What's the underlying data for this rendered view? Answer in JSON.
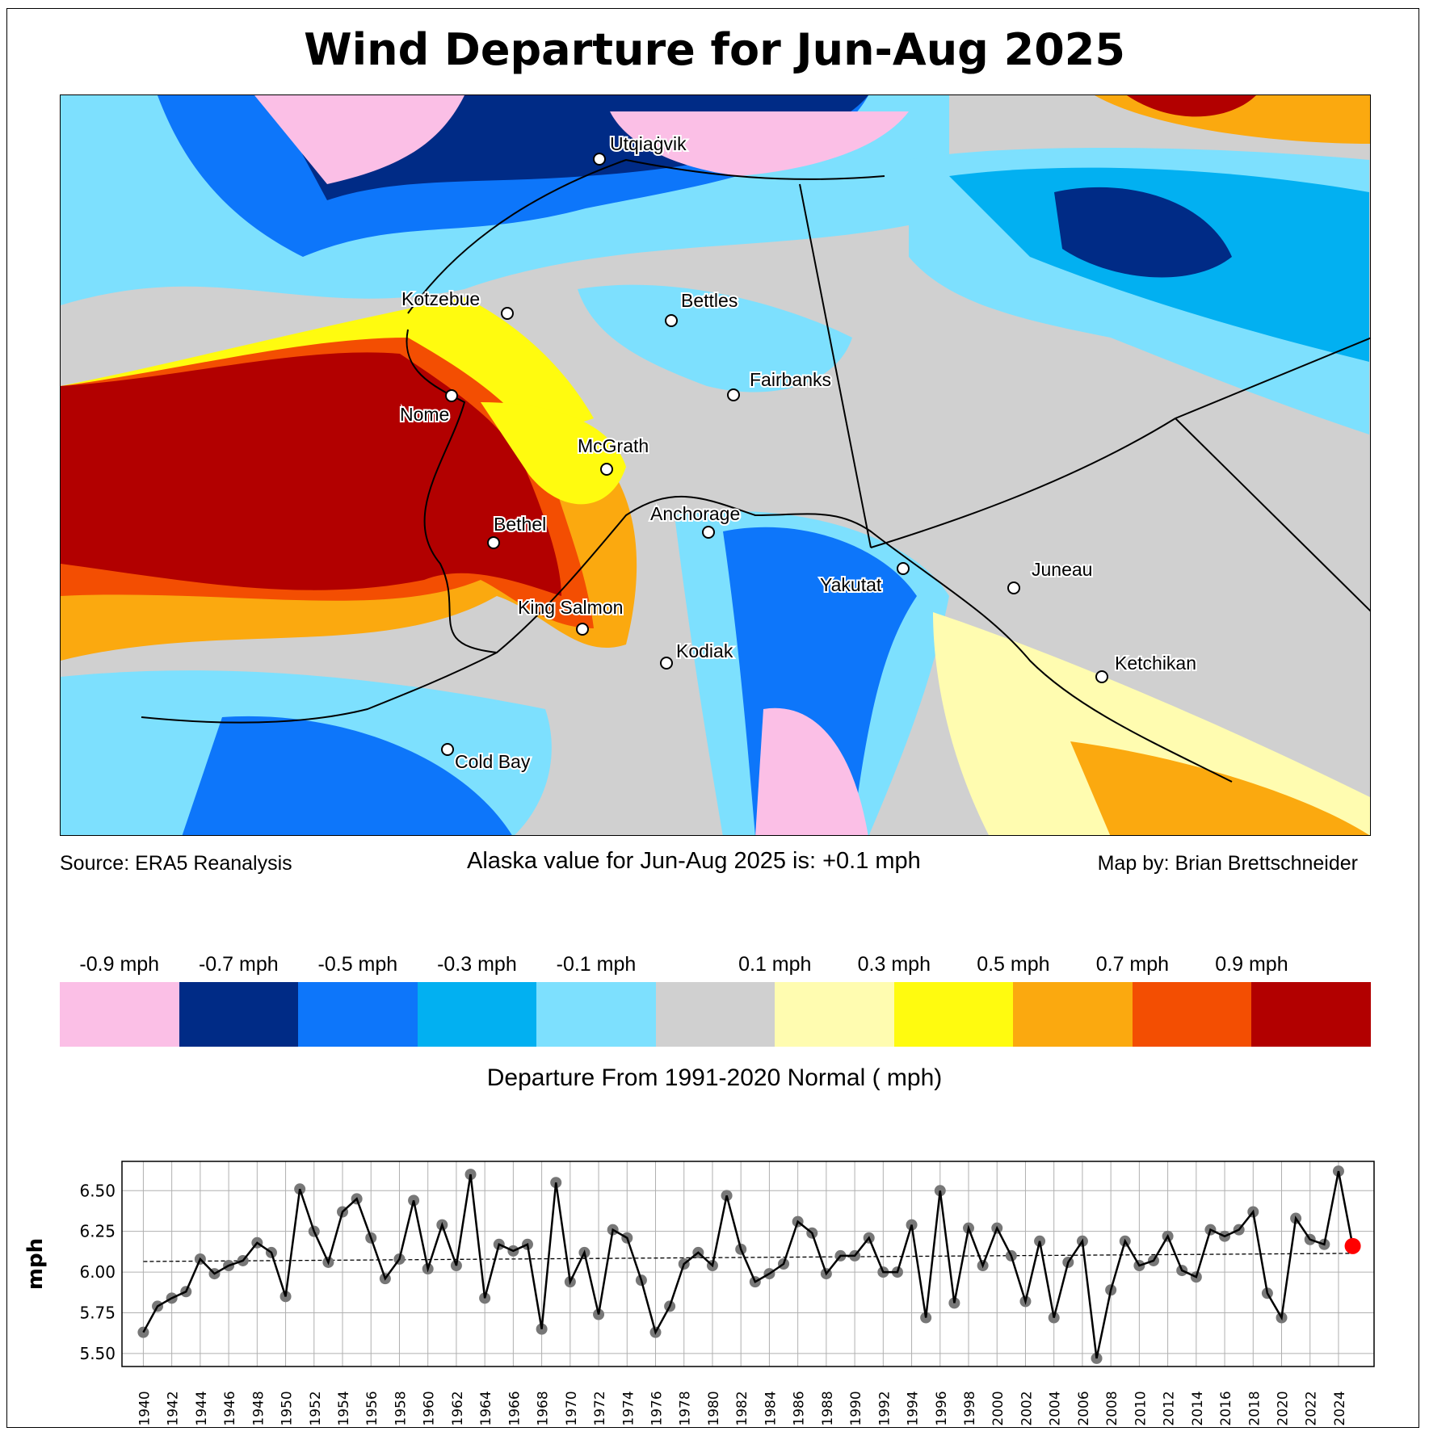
{
  "title": "Wind Departure for Jun-Aug 2025",
  "source": "Source: ERA5 Reanalysis",
  "summary": "Alaska value for Jun-Aug 2025 is: +0.1 mph",
  "credit": "Map by: Brian Brettschneider",
  "cities": [
    "Utqiaġvik",
    "Kotzebue",
    "Bettles",
    "Fairbanks",
    "Nome",
    "McGrath",
    "Bethel",
    "Anchorage",
    "Yakutat",
    "Juneau",
    "King Salmon",
    "Kodiak",
    "Ketchikan",
    "Cold Bay"
  ],
  "colorbar": {
    "title": "Departure From 1991-2020 Normal ( mph)",
    "labels": [
      "-0.9 mph",
      "-0.7 mph",
      "-0.5 mph",
      "-0.3 mph",
      "-0.1 mph",
      "0.1 mph",
      "0.3 mph",
      "0.5 mph",
      "0.7 mph",
      "0.9 mph"
    ],
    "colors": [
      "#fbbfe6",
      "#002b86",
      "#0d76fa",
      "#02b0f1",
      "#7de0fe",
      "#d0d0d0",
      "#fffcb0",
      "#fffb0f",
      "#fba90f",
      "#f34e02",
      "#b20000"
    ]
  },
  "chart_data": {
    "type": "line",
    "title": "",
    "xlabel": "",
    "ylabel": "mph",
    "ylim": [
      5.42,
      6.68
    ],
    "yticks": [
      "5.50",
      "5.75",
      "6.00",
      "6.25",
      "6.50"
    ],
    "x": [
      1940,
      1941,
      1942,
      1943,
      1944,
      1945,
      1946,
      1947,
      1948,
      1949,
      1950,
      1951,
      1952,
      1953,
      1954,
      1955,
      1956,
      1957,
      1958,
      1959,
      1960,
      1961,
      1962,
      1963,
      1964,
      1965,
      1966,
      1967,
      1968,
      1969,
      1970,
      1971,
      1972,
      1973,
      1974,
      1975,
      1976,
      1977,
      1978,
      1979,
      1980,
      1981,
      1982,
      1983,
      1984,
      1985,
      1986,
      1987,
      1988,
      1989,
      1990,
      1991,
      1992,
      1993,
      1994,
      1995,
      1996,
      1997,
      1998,
      1999,
      2000,
      2001,
      2002,
      2003,
      2004,
      2005,
      2006,
      2007,
      2008,
      2009,
      2010,
      2011,
      2012,
      2013,
      2014,
      2015,
      2016,
      2017,
      2018,
      2019,
      2020,
      2021,
      2022,
      2023,
      2024,
      2025
    ],
    "values": [
      5.63,
      5.79,
      5.84,
      5.88,
      6.08,
      5.99,
      6.04,
      6.07,
      6.18,
      6.12,
      5.85,
      6.51,
      6.25,
      6.06,
      6.37,
      6.45,
      6.21,
      5.96,
      6.08,
      6.44,
      6.02,
      6.29,
      6.04,
      6.6,
      5.84,
      6.17,
      6.13,
      6.17,
      5.65,
      6.55,
      5.94,
      6.12,
      5.74,
      6.26,
      6.21,
      5.95,
      5.63,
      5.79,
      6.05,
      6.12,
      6.04,
      6.47,
      6.14,
      5.94,
      5.99,
      6.05,
      6.31,
      6.24,
      5.99,
      6.1,
      6.1,
      6.21,
      6.0,
      6.0,
      6.29,
      5.72,
      6.5,
      5.81,
      6.27,
      6.04,
      6.27,
      6.1,
      5.82,
      6.19,
      5.72,
      6.06,
      6.19,
      5.47,
      5.89,
      6.19,
      6.04,
      6.07,
      6.22,
      6.01,
      5.97,
      6.26,
      6.22,
      6.26,
      6.37,
      5.87,
      5.72,
      6.33,
      6.2,
      6.17,
      6.62,
      6.16
    ],
    "trend": [
      6.065,
      6.115
    ],
    "highlight_year": 2025,
    "grid": true
  }
}
